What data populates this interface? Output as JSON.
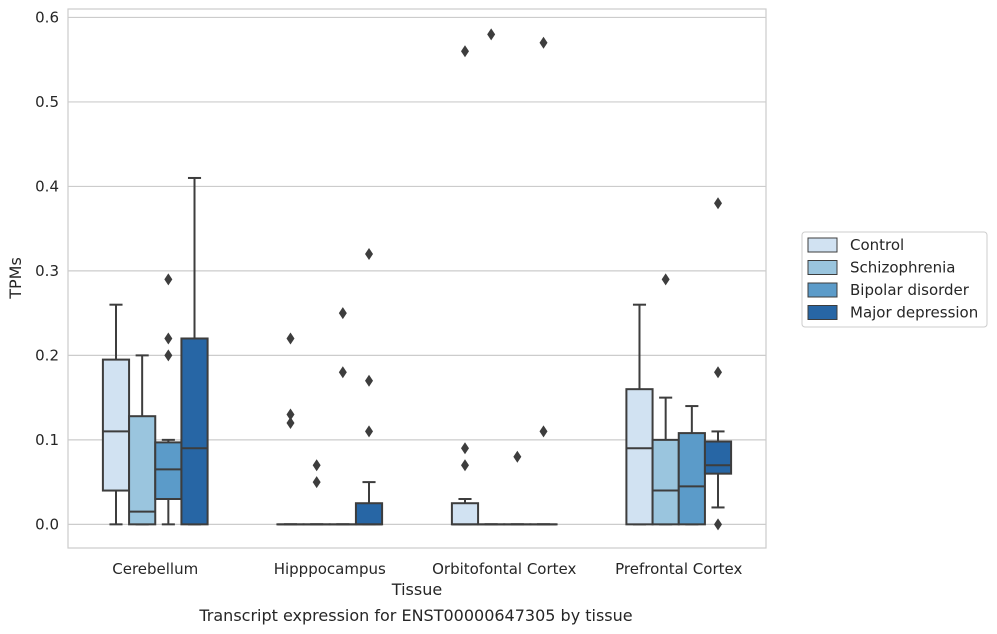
{
  "caption": "Transcript expression for ENST00000647305 by tissue",
  "chart_data": {
    "type": "box",
    "xlabel": "Tissue",
    "ylabel": "TPMs",
    "ylim": [
      -0.028,
      0.61
    ],
    "yticks": [
      0.0,
      0.1,
      0.2,
      0.3,
      0.4,
      0.5,
      0.6
    ],
    "ytick_labels": [
      "0.0",
      "0.1",
      "0.2",
      "0.3",
      "0.4",
      "0.5",
      "0.6"
    ],
    "grid": "horizontal",
    "legend_position": "right",
    "categories": [
      "Cerebellum",
      "Hipppocampus",
      "Orbitofontal Cortex",
      "Prefrontal Cortex"
    ],
    "series": [
      {
        "name": "Control",
        "color": "#d1e2f2",
        "boxes": [
          {
            "q1": 0.04,
            "median": 0.11,
            "q3": 0.195,
            "whislo": 0.0,
            "whishi": 0.26,
            "fliers": []
          },
          {
            "q1": 0.0,
            "median": 0.0,
            "q3": 0.0,
            "whislo": 0.0,
            "whishi": 0.0,
            "fliers": [
              0.22,
              0.13,
              0.12
            ]
          },
          {
            "q1": 0.0,
            "median": 0.0,
            "q3": 0.025,
            "whislo": 0.0,
            "whishi": 0.03,
            "fliers": [
              0.56,
              0.09,
              0.07
            ]
          },
          {
            "q1": 0.0,
            "median": 0.09,
            "q3": 0.16,
            "whislo": 0.0,
            "whishi": 0.26,
            "fliers": []
          }
        ]
      },
      {
        "name": "Schizophrenia",
        "color": "#9ac5de",
        "boxes": [
          {
            "q1": 0.0,
            "median": 0.015,
            "q3": 0.128,
            "whislo": 0.0,
            "whishi": 0.2,
            "fliers": []
          },
          {
            "q1": 0.0,
            "median": 0.0,
            "q3": 0.0,
            "whislo": 0.0,
            "whishi": 0.0,
            "fliers": [
              0.07,
              0.05
            ]
          },
          {
            "q1": 0.0,
            "median": 0.0,
            "q3": 0.0,
            "whislo": 0.0,
            "whishi": 0.0,
            "fliers": [
              0.58
            ]
          },
          {
            "q1": 0.0,
            "median": 0.04,
            "q3": 0.1,
            "whislo": 0.0,
            "whishi": 0.15,
            "fliers": [
              0.29
            ]
          }
        ]
      },
      {
        "name": "Bipolar disorder",
        "color": "#5b9bc9",
        "boxes": [
          {
            "q1": 0.03,
            "median": 0.065,
            "q3": 0.097,
            "whislo": 0.0,
            "whishi": 0.1,
            "fliers": [
              0.29,
              0.22,
              0.2
            ]
          },
          {
            "q1": 0.0,
            "median": 0.0,
            "q3": 0.0,
            "whislo": 0.0,
            "whishi": 0.0,
            "fliers": [
              0.25,
              0.18
            ]
          },
          {
            "q1": 0.0,
            "median": 0.0,
            "q3": 0.0,
            "whislo": 0.0,
            "whishi": 0.0,
            "fliers": [
              0.08
            ]
          },
          {
            "q1": 0.0,
            "median": 0.045,
            "q3": 0.108,
            "whislo": 0.0,
            "whishi": 0.14,
            "fliers": []
          }
        ]
      },
      {
        "name": "Major depression",
        "color": "#2766a5",
        "boxes": [
          {
            "q1": 0.0,
            "median": 0.09,
            "q3": 0.22,
            "whislo": 0.0,
            "whishi": 0.41,
            "fliers": []
          },
          {
            "q1": 0.0,
            "median": 0.0,
            "q3": 0.025,
            "whislo": 0.0,
            "whishi": 0.05,
            "fliers": [
              0.32,
              0.17,
              0.11
            ]
          },
          {
            "q1": 0.0,
            "median": 0.0,
            "q3": 0.0,
            "whislo": 0.0,
            "whishi": 0.0,
            "fliers": [
              0.57,
              0.11
            ]
          },
          {
            "q1": 0.06,
            "median": 0.07,
            "q3": 0.098,
            "whislo": 0.02,
            "whishi": 0.11,
            "fliers": [
              0.38,
              0.18,
              0.0
            ]
          }
        ]
      }
    ]
  }
}
